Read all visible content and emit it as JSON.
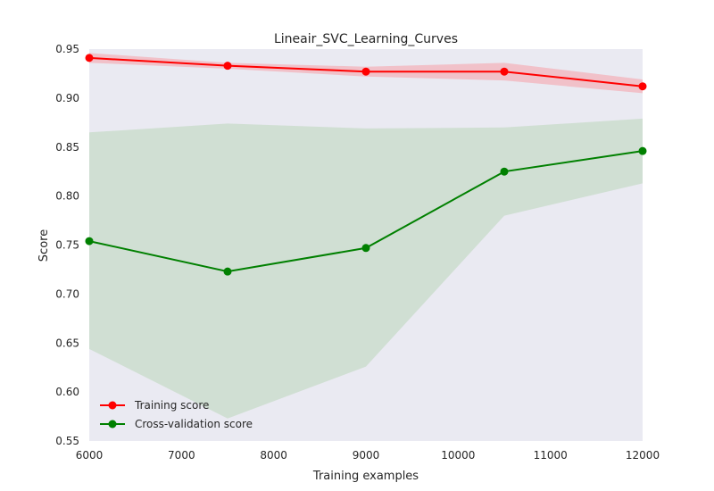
{
  "chart_data": {
    "type": "line",
    "title": "Lineair_SVC_Learning_Curves",
    "xlabel": "Training examples",
    "ylabel": "Score",
    "xlim": [
      6000,
      12000
    ],
    "ylim": [
      0.55,
      0.95
    ],
    "x_ticks": [
      "6000",
      "7000",
      "8000",
      "9000",
      "10000",
      "11000",
      "12000"
    ],
    "y_ticks": [
      "0.55",
      "0.60",
      "0.65",
      "0.70",
      "0.75",
      "0.80",
      "0.85",
      "0.90",
      "0.95"
    ],
    "x": [
      6000,
      7500,
      9000,
      10500,
      12000
    ],
    "grid": false,
    "legend_position": "lower-left",
    "series": [
      {
        "name": "Training score",
        "color": "#ff0000",
        "band_color": "#f2b6be",
        "values": [
          0.941,
          0.933,
          0.927,
          0.927,
          0.912
        ],
        "band_upper": [
          0.946,
          0.936,
          0.932,
          0.936,
          0.919
        ],
        "band_lower": [
          0.936,
          0.93,
          0.922,
          0.918,
          0.905
        ]
      },
      {
        "name": "Cross-validation score",
        "color": "#008000",
        "band_color": "#c9dccb",
        "values": [
          0.754,
          0.723,
          0.747,
          0.825,
          0.846
        ],
        "band_upper": [
          0.865,
          0.874,
          0.869,
          0.87,
          0.879
        ],
        "band_lower": [
          0.644,
          0.573,
          0.626,
          0.78,
          0.813
        ]
      }
    ],
    "background_color": "#eaeaf2"
  }
}
